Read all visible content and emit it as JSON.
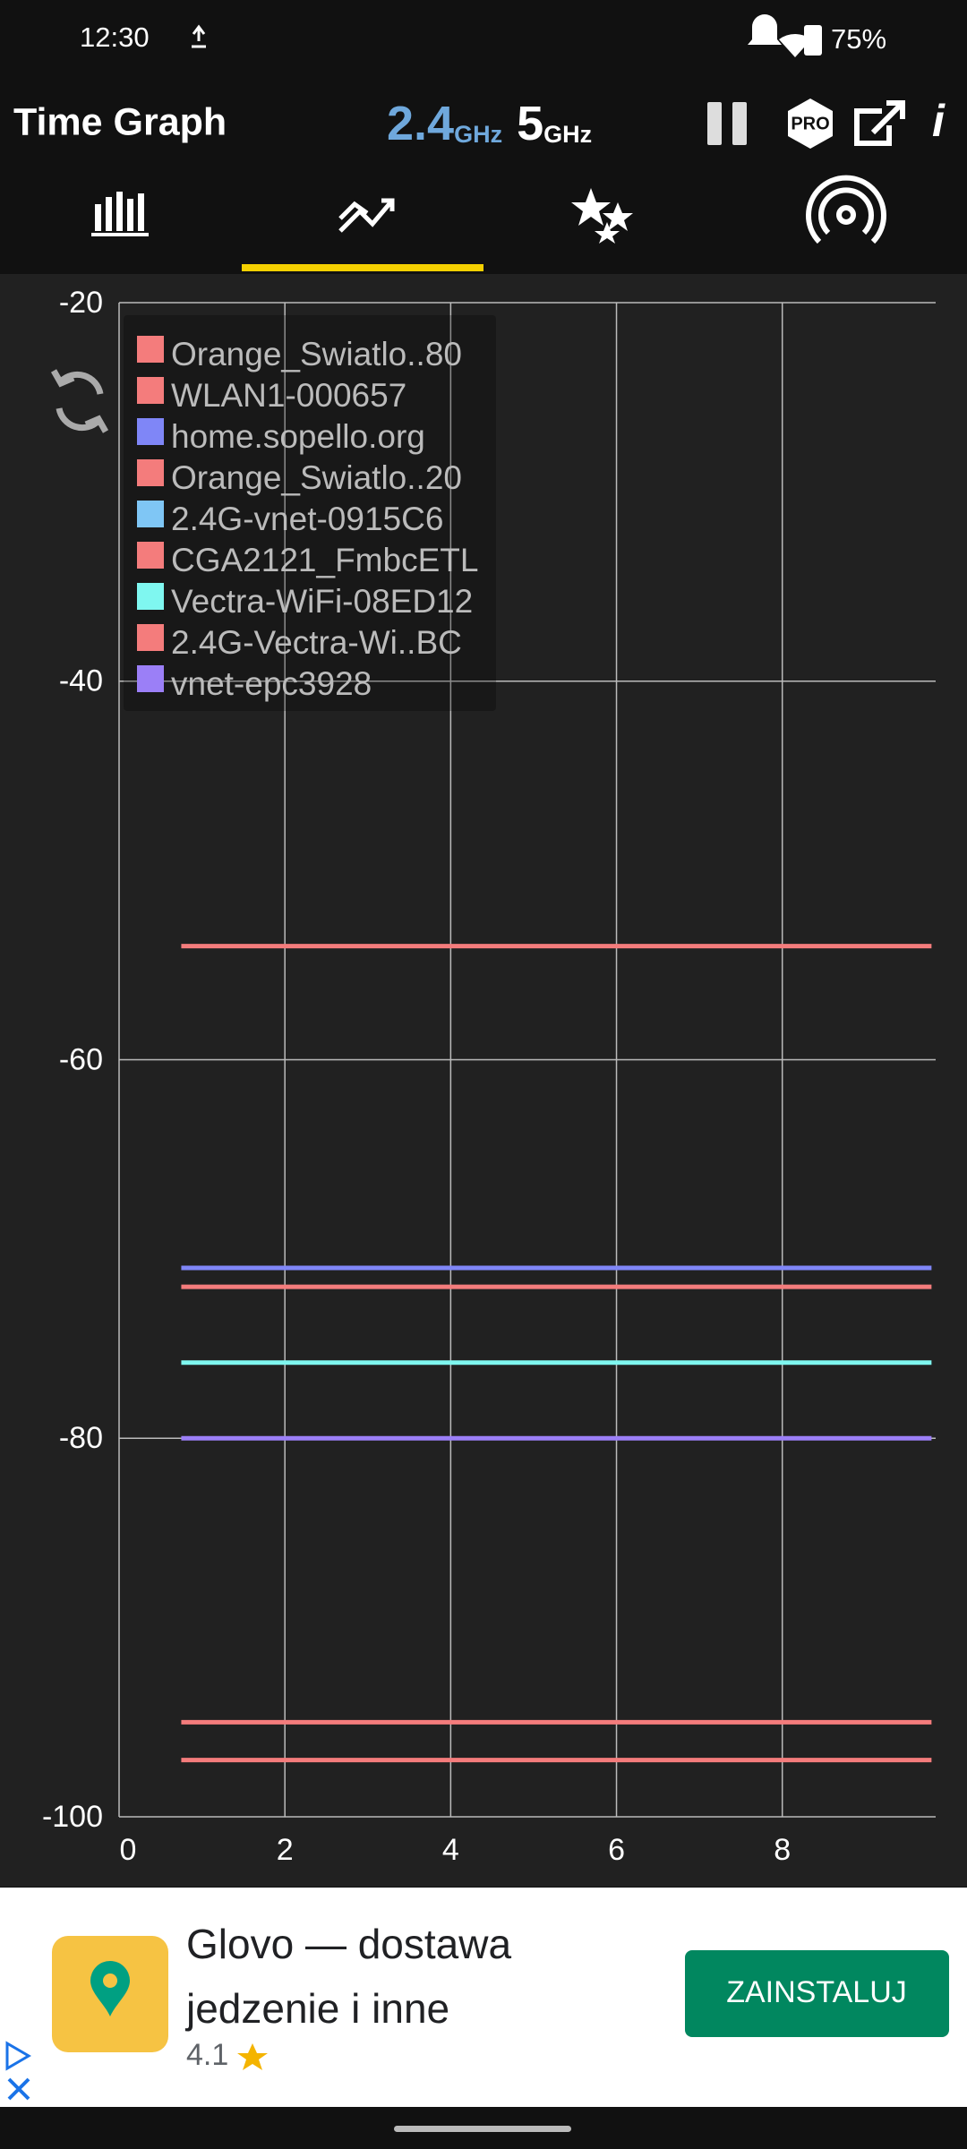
{
  "status_bar": {
    "time": "12:30",
    "battery": "75%"
  },
  "header": {
    "title": "Time Graph",
    "band_24": "2.4",
    "band_24_unit": "GHz",
    "band_5": "5",
    "band_5_unit": "GHz",
    "pro_badge": "PRO",
    "info": "i"
  },
  "chart_data": {
    "type": "line",
    "x": [
      0.75,
      9.8
    ],
    "xlim": [
      0,
      9.85
    ],
    "xticks": [
      0,
      2,
      4,
      6,
      8
    ],
    "ylim": [
      -100,
      -20
    ],
    "yticks": [
      -100,
      -80,
      -60,
      -40,
      -20
    ],
    "grid": true,
    "legend": "top-left",
    "series": [
      {
        "name": "Orange_Swiatlo..80",
        "color": "#f47c7c",
        "values": [
          -54,
          -54
        ]
      },
      {
        "name": "WLAN1-000657",
        "color": "#f47c7c",
        "values": [
          -72,
          -72
        ]
      },
      {
        "name": "home.sopello.org",
        "color": "#7f86f7",
        "values": [
          -71,
          -71
        ]
      },
      {
        "name": "Orange_Swiatlo..20",
        "color": "#f47c7c",
        "values": [
          -95,
          -95
        ]
      },
      {
        "name": "2.4G-vnet-0915C6",
        "color": "#7fc6f5",
        "values": [
          null,
          null
        ]
      },
      {
        "name": "CGA2121_FmbcETL",
        "color": "#f47c7c",
        "values": [
          -97,
          -97
        ]
      },
      {
        "name": "Vectra-WiFi-08ED12",
        "color": "#7ff7f0",
        "values": [
          -76,
          -76
        ]
      },
      {
        "name": "2.4G-Vectra-Wi..BC",
        "color": "#f47c7c",
        "values": [
          null,
          null
        ]
      },
      {
        "name": "vnet-epc3928",
        "color": "#9b7ff7",
        "values": [
          -80,
          -80
        ]
      }
    ]
  },
  "ad": {
    "title": "Glovo — dostawa jedzenie i inne",
    "rating": "4.1",
    "button": "ZAINSTALUJ"
  }
}
